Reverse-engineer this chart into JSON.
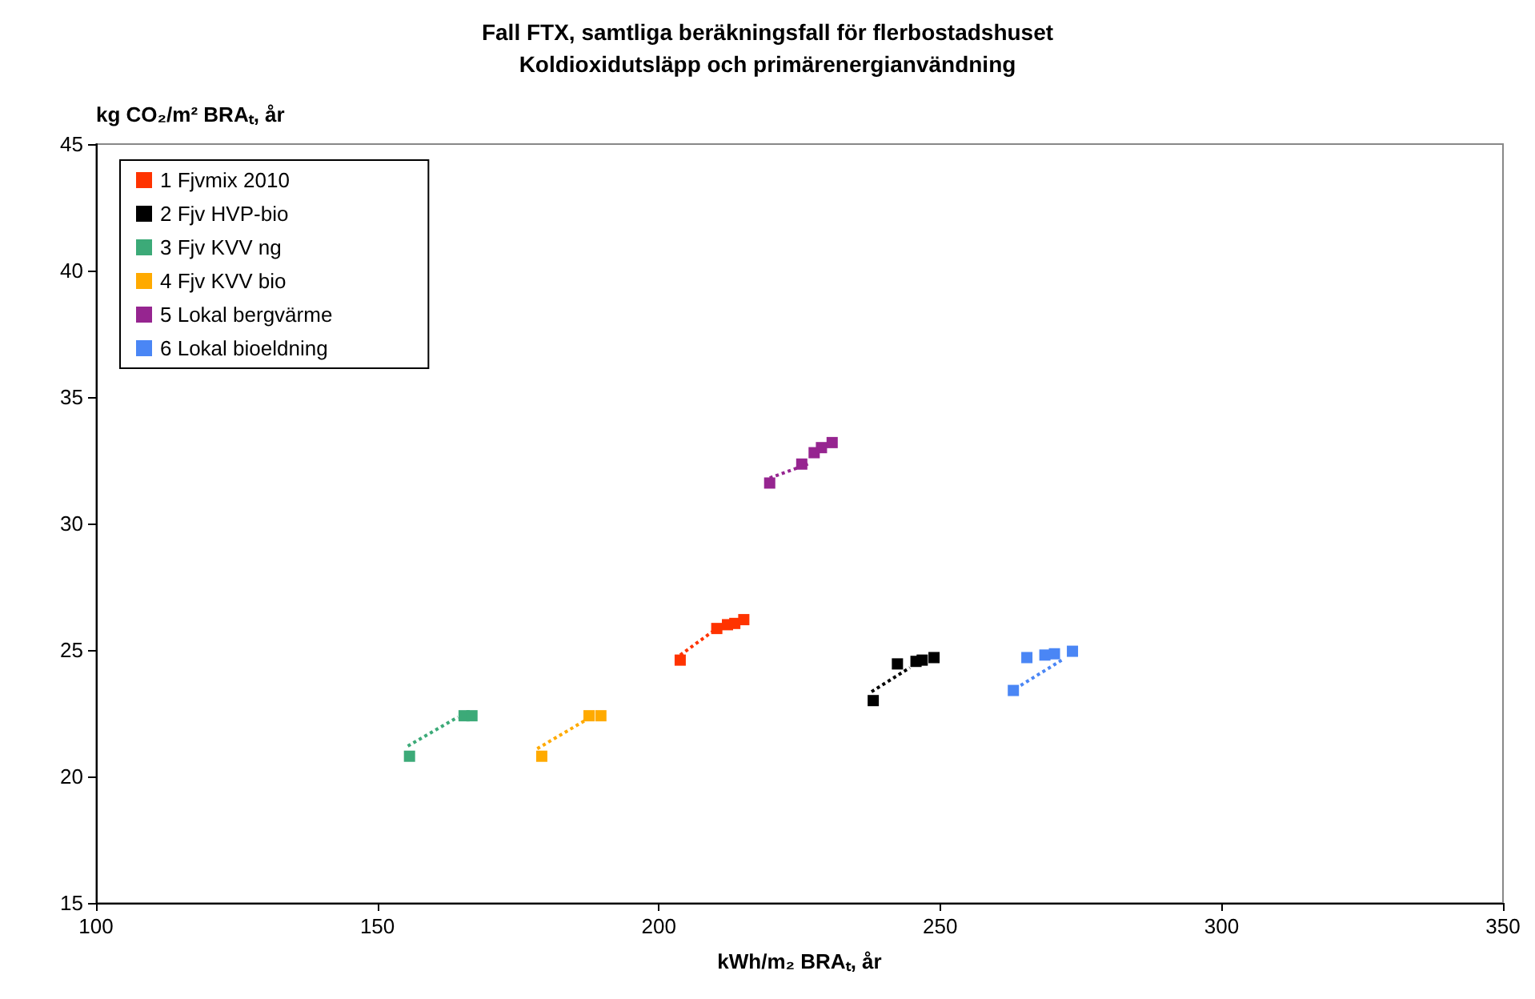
{
  "chart_data": {
    "type": "scatter",
    "title": "Fall FTX, samtliga beräkningsfall för flerbostadshuset",
    "subtitle": "Koldioxidutsläpp och primärenergianvändning",
    "xlabel": "kWh/m₂ BRAₜ, år",
    "ylabel": "kg CO₂/m² BRAₜ, år",
    "xlim": [
      100,
      350
    ],
    "xticks": [
      100,
      150,
      200,
      250,
      300,
      350
    ],
    "ylim": [
      15,
      45
    ],
    "yticks": [
      15,
      20,
      25,
      30,
      35,
      40,
      45
    ],
    "grid": false,
    "legend": "top left",
    "marker": "square",
    "series": [
      {
        "name": "1 Fjvmix 2010",
        "color": "#ff3300",
        "x": [
          203.8,
          210.3,
          212.2,
          213.5,
          215.1
        ],
        "values": [
          24.6,
          25.85,
          26.0,
          26.05,
          26.2
        ]
      },
      {
        "name": "2 Fjv HVP-bio",
        "color": "#000000",
        "x": [
          238.1,
          242.4,
          245.7,
          246.8,
          248.9
        ],
        "values": [
          23.0,
          24.45,
          24.55,
          24.6,
          24.7
        ]
      },
      {
        "name": "3 Fjv KVV ng",
        "color": "#3caa78",
        "x": [
          155.7,
          165.4,
          166.8
        ],
        "values": [
          20.8,
          22.4,
          22.4
        ]
      },
      {
        "name": "4 Fjv KVV bio",
        "color": "#ffaa00",
        "x": [
          179.2,
          187.6,
          189.7
        ],
        "values": [
          20.8,
          22.4,
          22.4
        ]
      },
      {
        "name": "5 Lokal bergvärme",
        "color": "#962590",
        "x": [
          219.7,
          225.4,
          227.6,
          228.9,
          230.8
        ],
        "values": [
          31.6,
          32.35,
          32.8,
          33.0,
          33.2
        ]
      },
      {
        "name": "6 Lokal bioeldning",
        "color": "#4a86f5",
        "x": [
          263.0,
          265.4,
          268.6,
          270.3,
          273.5
        ],
        "values": [
          23.4,
          24.7,
          24.8,
          24.85,
          24.95
        ]
      },
      {
        "type": "line",
        "color": "#ff3300",
        "x": [
          203.8,
          210.3
        ],
        "values": [
          24.8,
          25.85
        ],
        "line_style": "dotted",
        "marker": "none"
      },
      {
        "type": "line",
        "color": "#000000",
        "x": [
          237.8,
          244.6
        ],
        "values": [
          23.35,
          24.3
        ],
        "line_style": "dotted",
        "marker": "none"
      },
      {
        "type": "line",
        "color": "#3caa78",
        "x": [
          155.4,
          164.3
        ],
        "values": [
          21.2,
          22.35
        ],
        "line_style": "dotted",
        "marker": "none"
      },
      {
        "type": "line",
        "color": "#ffaa00",
        "x": [
          178.4,
          186.8
        ],
        "values": [
          21.1,
          22.2
        ],
        "line_style": "dotted",
        "marker": "none"
      },
      {
        "type": "line",
        "color": "#962590",
        "x": [
          219.7,
          226.5
        ],
        "values": [
          31.8,
          32.35
        ],
        "line_style": "dotted",
        "marker": "none"
      },
      {
        "type": "line",
        "color": "#4a86f5",
        "x": [
          264.3,
          271.6
        ],
        "values": [
          23.6,
          24.6
        ],
        "line_style": "dotted",
        "marker": "none"
      }
    ]
  }
}
